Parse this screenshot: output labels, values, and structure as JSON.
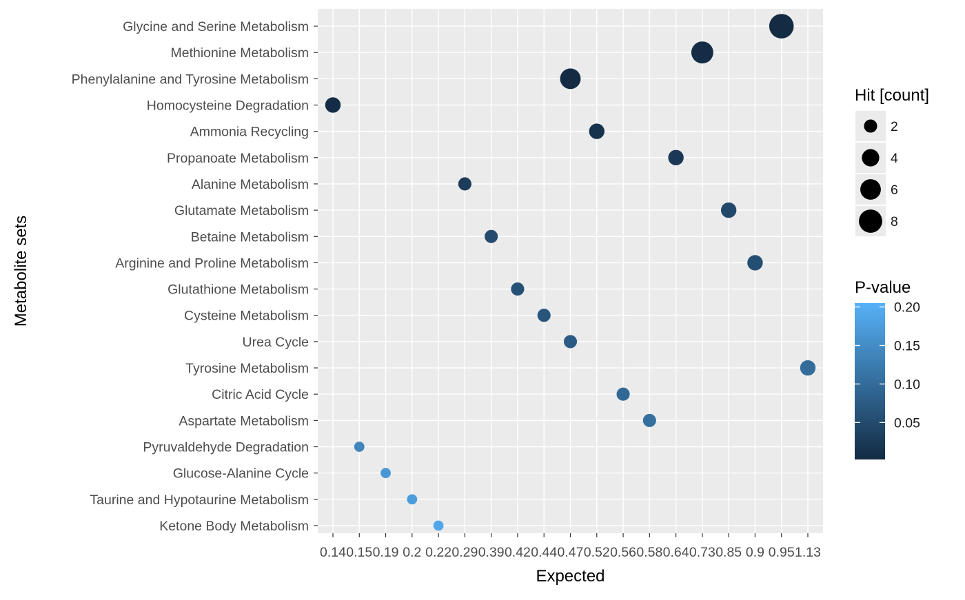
{
  "chart_data": {
    "type": "scatter",
    "xlabel": "Expected",
    "ylabel": "Metabolite sets",
    "x_tick_labels": [
      "0.14",
      "0.15",
      "0.19",
      "0.2",
      "0.22",
      "0.29",
      "0.39",
      "0.42",
      "0.44",
      "0.47",
      "0.52",
      "0.56",
      "0.58",
      "0.64",
      "0.73",
      "0.85",
      "0.9",
      "0.95",
      "1.13"
    ],
    "y_categories": [
      "Glycine and Serine Metabolism",
      "Methionine Metabolism",
      "Phenylalanine and Tyrosine Metabolism",
      "Homocysteine Degradation",
      "Ammonia Recycling",
      "Propanoate Metabolism",
      "Alanine Metabolism",
      "Glutamate Metabolism",
      "Betaine Metabolism",
      "Arginine and Proline Metabolism",
      "Glutathione Metabolism",
      "Cysteine Metabolism",
      "Urea Cycle",
      "Tyrosine Metabolism",
      "Citric Acid Cycle",
      "Aspartate Metabolism",
      "Pyruvaldehyde Degradation",
      "Glucose-Alanine Cycle",
      "Taurine and Hypotaurine Metabolism",
      "Ketone Body Metabolism"
    ],
    "points": [
      {
        "set": "Glycine and Serine Metabolism",
        "expected": "0.95",
        "hits": 9,
        "p_value": 0.002
      },
      {
        "set": "Methionine Metabolism",
        "expected": "0.73",
        "hits": 7,
        "p_value": 0.004
      },
      {
        "set": "Phenylalanine and Tyrosine Metabolism",
        "expected": "0.47",
        "hits": 6,
        "p_value": 0.003
      },
      {
        "set": "Homocysteine Degradation",
        "expected": "0.14",
        "hits": 3,
        "p_value": 0.004
      },
      {
        "set": "Ammonia Recycling",
        "expected": "0.52",
        "hits": 3,
        "p_value": 0.012
      },
      {
        "set": "Propanoate Metabolism",
        "expected": "0.64",
        "hits": 3,
        "p_value": 0.022
      },
      {
        "set": "Alanine Metabolism",
        "expected": "0.29",
        "hits": 2,
        "p_value": 0.028
      },
      {
        "set": "Glutamate Metabolism",
        "expected": "0.85",
        "hits": 3,
        "p_value": 0.045
      },
      {
        "set": "Betaine Metabolism",
        "expected": "0.39",
        "hits": 2,
        "p_value": 0.05
      },
      {
        "set": "Arginine and Proline Metabolism",
        "expected": "0.9",
        "hits": 3,
        "p_value": 0.055
      },
      {
        "set": "Glutathione Metabolism",
        "expected": "0.42",
        "hits": 2,
        "p_value": 0.06
      },
      {
        "set": "Cysteine Metabolism",
        "expected": "0.44",
        "hits": 2,
        "p_value": 0.065
      },
      {
        "set": "Urea Cycle",
        "expected": "0.47",
        "hits": 2,
        "p_value": 0.075
      },
      {
        "set": "Tyrosine Metabolism",
        "expected": "1.13",
        "hits": 3,
        "p_value": 0.1
      },
      {
        "set": "Citric Acid Cycle",
        "expected": "0.56",
        "hits": 2,
        "p_value": 0.095
      },
      {
        "set": "Aspartate Metabolism",
        "expected": "0.58",
        "hits": 2,
        "p_value": 0.105
      },
      {
        "set": "Pyruvaldehyde Degradation",
        "expected": "0.15",
        "hits": 1,
        "p_value": 0.14
      },
      {
        "set": "Glucose-Alanine Cycle",
        "expected": "0.19",
        "hits": 1,
        "p_value": 0.165
      },
      {
        "set": "Taurine and Hypotaurine Metabolism",
        "expected": "0.2",
        "hits": 1,
        "p_value": 0.175
      },
      {
        "set": "Ketone Body Metabolism",
        "expected": "0.22",
        "hits": 1,
        "p_value": 0.19
      }
    ],
    "size_legend": {
      "title": "Hit [count]",
      "entries": [
        {
          "label": "2",
          "value": 2
        },
        {
          "label": "4",
          "value": 4
        },
        {
          "label": "6",
          "value": 6
        },
        {
          "label": "8",
          "value": 8
        }
      ]
    },
    "color_legend": {
      "title": "P-value",
      "ticks": [
        {
          "label": "0.20",
          "value": 0.2
        },
        {
          "label": "0.15",
          "value": 0.15
        },
        {
          "label": "0.10",
          "value": 0.1
        },
        {
          "label": "0.05",
          "value": 0.05
        }
      ],
      "range": [
        0.002,
        0.205
      ],
      "low_color": "#132B43",
      "high_color": "#56B1F7"
    },
    "panel_background": "#EBEBEB",
    "grid_color": "#FFFFFF",
    "grid": true
  }
}
